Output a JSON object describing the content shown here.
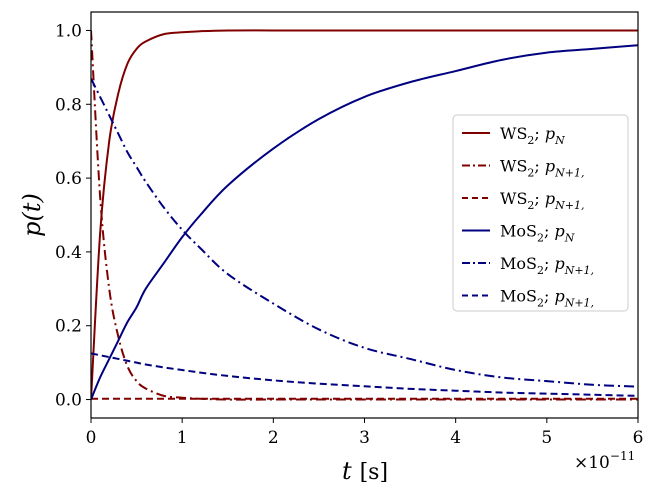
{
  "chart_data": {
    "type": "line",
    "title": "",
    "xlabel": {
      "var": "t",
      "unit": "[s]"
    },
    "ylabel": {
      "var": "p(t)"
    },
    "x_scale_label": {
      "base": "×10",
      "exp": "−11"
    },
    "x_scale_factor": 1e-11,
    "xlim": [
      0,
      6
    ],
    "ylim": [
      -0.05,
      1.05
    ],
    "x_ticks": [
      "0",
      "1",
      "2",
      "3",
      "4",
      "5",
      "6"
    ],
    "y_ticks": [
      "0.0",
      "0.2",
      "0.4",
      "0.6",
      "0.8",
      "1.0"
    ],
    "grid": false,
    "legend_position": "center-right",
    "colors": {
      "ws2": "#800000",
      "mos2": "#000080"
    },
    "x": [
      0,
      0.1,
      0.2,
      0.3,
      0.4,
      0.5,
      0.6,
      0.8,
      1.0,
      1.2,
      1.5,
      2.0,
      2.5,
      3.0,
      3.5,
      4.0,
      4.5,
      5.0,
      5.5,
      6.0
    ],
    "series": [
      {
        "name": "WS₂; p_N",
        "legend_main": "WS",
        "legend_sub": "2",
        "legend_var": "p",
        "legend_var_sub": "N",
        "color": "#800000",
        "dash": "solid",
        "values": [
          0.0,
          0.45,
          0.7,
          0.83,
          0.91,
          0.95,
          0.97,
          0.99,
          0.995,
          0.998,
          1.0,
          1.0,
          1.0,
          1.0,
          1.0,
          1.0,
          1.0,
          1.0,
          1.0,
          1.0
        ]
      },
      {
        "name": "WS₂; p_N+1,",
        "legend_main": "WS",
        "legend_sub": "2",
        "legend_var": "p",
        "legend_var_sub": "N+1,",
        "color": "#800000",
        "dash": "dashdot",
        "values": [
          1.0,
          0.55,
          0.3,
          0.17,
          0.09,
          0.05,
          0.03,
          0.01,
          0.005,
          0.002,
          0.0,
          0.0,
          0.0,
          0.0,
          0.0,
          0.0,
          0.0,
          0.0,
          0.0,
          0.0
        ]
      },
      {
        "name": "WS₂; p_N+1,",
        "legend_main": "WS",
        "legend_sub": "2",
        "legend_var": "p",
        "legend_var_sub": "N+1,",
        "color": "#800000",
        "dash": "dashed",
        "values": [
          0.002,
          0.002,
          0.002,
          0.002,
          0.002,
          0.002,
          0.002,
          0.002,
          0.002,
          0.002,
          0.002,
          0.002,
          0.002,
          0.002,
          0.002,
          0.002,
          0.002,
          0.002,
          0.002,
          0.002
        ]
      },
      {
        "name": "MoS₂; p_N",
        "legend_main": "MoS",
        "legend_sub": "2",
        "legend_var": "p",
        "legend_var_sub": "N",
        "color": "#000080",
        "dash": "solid",
        "values": [
          0.0,
          0.06,
          0.11,
          0.16,
          0.21,
          0.25,
          0.3,
          0.37,
          0.44,
          0.5,
          0.58,
          0.68,
          0.76,
          0.82,
          0.86,
          0.89,
          0.92,
          0.94,
          0.95,
          0.96
        ]
      },
      {
        "name": "MoS₂; p_N+1,",
        "legend_main": "MoS",
        "legend_sub": "2",
        "legend_var": "p",
        "legend_var_sub": "N+1,",
        "color": "#000080",
        "dash": "dashdot",
        "values": [
          0.87,
          0.82,
          0.77,
          0.72,
          0.67,
          0.63,
          0.59,
          0.52,
          0.46,
          0.41,
          0.34,
          0.26,
          0.19,
          0.14,
          0.11,
          0.08,
          0.06,
          0.05,
          0.04,
          0.035
        ]
      },
      {
        "name": "MoS₂; p_N+1,",
        "legend_main": "MoS",
        "legend_sub": "2",
        "legend_var": "p",
        "legend_var_sub": "N+1,",
        "color": "#000080",
        "dash": "dashed",
        "values": [
          0.125,
          0.12,
          0.115,
          0.11,
          0.105,
          0.1,
          0.095,
          0.087,
          0.08,
          0.073,
          0.064,
          0.052,
          0.043,
          0.036,
          0.029,
          0.024,
          0.019,
          0.016,
          0.013,
          0.01
        ]
      }
    ]
  }
}
